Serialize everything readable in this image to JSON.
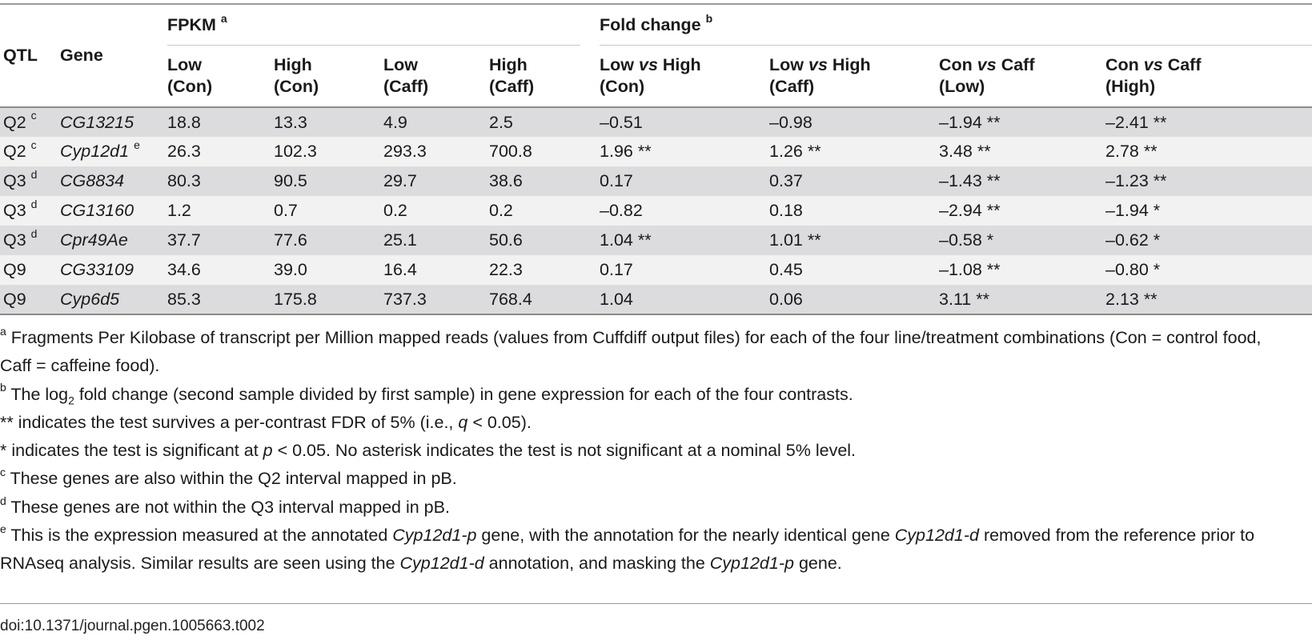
{
  "header": {
    "qtl": "QTL",
    "gene": "Gene",
    "fpkm_group": "FPKM",
    "fpkm_mark": "a",
    "fold_group": "Fold change",
    "fold_mark": "b",
    "columns": [
      {
        "line1": "Low",
        "line2": "(Con)"
      },
      {
        "line1": "High",
        "line2": "(Con)"
      },
      {
        "line1": "Low",
        "line2": "(Caff)"
      },
      {
        "line1": "High",
        "line2": "(Caff)"
      },
      {
        "a": "Low",
        "vs": "vs",
        "b": "High",
        "line2": "(Con)"
      },
      {
        "a": "Low",
        "vs": "vs",
        "b": "High",
        "line2": "(Caff)"
      },
      {
        "a": "Con",
        "vs": "vs",
        "b": "Caff",
        "line2": "(Low)"
      },
      {
        "a": "Con",
        "vs": "vs",
        "b": "Caff",
        "line2": "(High)"
      }
    ]
  },
  "rows": [
    {
      "qtl": "Q2",
      "qtl_mark": "c",
      "gene": "CG13215",
      "gene_mark": "",
      "v": [
        "18.8",
        "13.3",
        "4.9",
        "2.5",
        "–0.51",
        "–0.98",
        "–1.94 **",
        "–2.41 **"
      ]
    },
    {
      "qtl": "Q2",
      "qtl_mark": "c",
      "gene": "Cyp12d1",
      "gene_mark": "e",
      "v": [
        "26.3",
        "102.3",
        "293.3",
        "700.8",
        "1.96 **",
        "1.26 **",
        "3.48 **",
        "2.78 **"
      ]
    },
    {
      "qtl": "Q3",
      "qtl_mark": "d",
      "gene": "CG8834",
      "gene_mark": "",
      "v": [
        "80.3",
        "90.5",
        "29.7",
        "38.6",
        "0.17",
        "0.37",
        "–1.43 **",
        "–1.23 **"
      ]
    },
    {
      "qtl": "Q3",
      "qtl_mark": "d",
      "gene": "CG13160",
      "gene_mark": "",
      "v": [
        "1.2",
        "0.7",
        "0.2",
        "0.2",
        "–0.82",
        "0.18",
        "–2.94 **",
        "–1.94 *"
      ]
    },
    {
      "qtl": "Q3",
      "qtl_mark": "d",
      "gene": "Cpr49Ae",
      "gene_mark": "",
      "v": [
        "37.7",
        "77.6",
        "25.1",
        "50.6",
        "1.04 **",
        "1.01 **",
        "–0.58 *",
        "–0.62 *"
      ]
    },
    {
      "qtl": "Q9",
      "qtl_mark": "",
      "gene": "CG33109",
      "gene_mark": "",
      "v": [
        "34.6",
        "39.0",
        "16.4",
        "22.3",
        "0.17",
        "0.45",
        "–1.08 **",
        "–0.80 *"
      ]
    },
    {
      "qtl": "Q9",
      "qtl_mark": "",
      "gene": "Cyp6d5",
      "gene_mark": "",
      "v": [
        "85.3",
        "175.8",
        "737.3",
        "768.4",
        "1.04",
        "0.06",
        "3.11 **",
        "2.13 **"
      ]
    }
  ],
  "footnotes": {
    "a": {
      "mark": "a",
      "text": " Fragments Per Kilobase of transcript per Million mapped reads (values from Cuffdiff output files) for each of the four line/treatment combinations (Con = control food, Caff = caffeine food)."
    },
    "b": {
      "mark": "b",
      "pre": " The log",
      "sub": "2",
      "post": " fold change (second sample divided by first sample) in gene expression for each of the four contrasts."
    },
    "dstar": {
      "pre": "** indicates the test survives a per-contrast FDR of 5% (i.e., ",
      "q": "q",
      "post": " < 0.05)."
    },
    "star": {
      "pre": "* indicates the test is significant at ",
      "p": "p",
      "post": " < 0.05. No asterisk indicates the test is not significant at a nominal 5% level."
    },
    "c": {
      "mark": "c",
      "text": " These genes are also within the Q2 interval mapped in pB."
    },
    "d": {
      "mark": "d",
      "text": " These genes are not within the Q3 interval mapped in pB."
    },
    "e": {
      "mark": "e",
      "t1": " This is the expression measured at the annotated ",
      "g1": "Cyp12d1-p",
      "t2": " gene, with the annotation for the nearly identical gene ",
      "g2": "Cyp12d1-d",
      "t3": " removed from the reference prior to RNAseq analysis. Similar results are seen using the ",
      "g3": "Cyp12d1-d",
      "t4": " annotation, and masking the ",
      "g4": "Cyp12d1-p",
      "t5": " gene."
    }
  },
  "doi": "doi:10.1371/journal.pgen.1005663.t002"
}
